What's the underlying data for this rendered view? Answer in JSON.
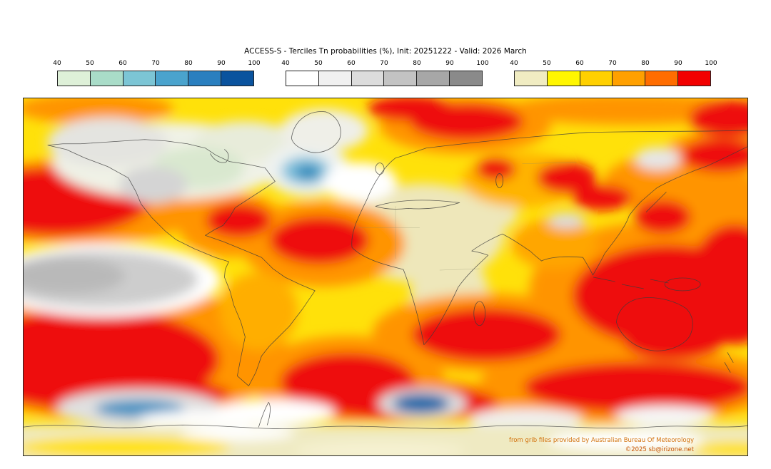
{
  "title": "ACCESS-S - Terciles Tn probabilities (%), Init: 20251222 - Valid: 2026 March",
  "colorbars": [
    {
      "id": "cool-blue-scale",
      "ticks": [
        "40",
        "50",
        "60",
        "70",
        "80",
        "90",
        "100"
      ],
      "colors": [
        "#def0d8",
        "#a9dcc8",
        "#7cc5d5",
        "#4aa3cd",
        "#2a7fbf",
        "#0a539e"
      ]
    },
    {
      "id": "neutral-gray-scale",
      "ticks": [
        "40",
        "50",
        "60",
        "70",
        "80",
        "90",
        "100"
      ],
      "colors": [
        "#ffffff",
        "#f0f0f0",
        "#dcdcdc",
        "#c3c3c3",
        "#a7a7a7",
        "#8a8a8a"
      ]
    },
    {
      "id": "warm-yellow-red-scale",
      "ticks": [
        "40",
        "50",
        "60",
        "70",
        "80",
        "90",
        "100"
      ],
      "colors": [
        "#f0ecc2",
        "#fff600",
        "#ffd000",
        "#ffa000",
        "#ff6d00",
        "#f20000"
      ]
    }
  ],
  "map": {
    "attribution_source": "from grib files provided by Australian Bureau Of Meteorology",
    "attribution_copyright": "©2025 sb@irizone.net"
  }
}
